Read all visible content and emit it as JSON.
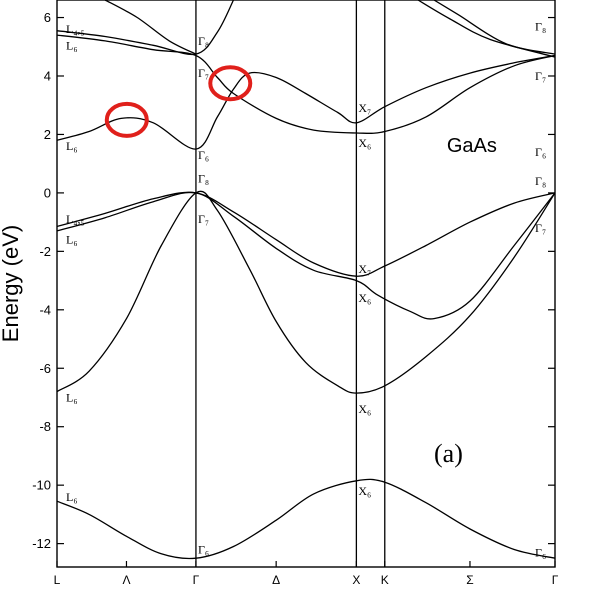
{
  "chart_data": {
    "type": "line",
    "title": "",
    "material_label": "GaAs",
    "panel_label": "(a)",
    "ylabel": "Energy (eV)",
    "xlabel": "",
    "ylim": [
      -12.8,
      6.6
    ],
    "yticks": [
      6,
      4,
      2,
      0,
      -2,
      -4,
      -6,
      -8,
      -10,
      -12
    ],
    "kpoints": [
      {
        "label": "L",
        "x": 0.0
      },
      {
        "label": "Λ",
        "x": 0.433
      },
      {
        "label": "Γ",
        "x": 0.866
      },
      {
        "label": "Δ",
        "x": 1.366
      },
      {
        "label": "X",
        "x": 1.866
      },
      {
        "label": "K",
        "x": 2.043
      },
      {
        "label": "Σ",
        "x": 2.574
      },
      {
        "label": "Γ",
        "x": 3.104
      }
    ],
    "xlim": [
      0,
      3.104
    ],
    "vertical_lines_at": [
      0.866,
      1.866,
      2.043
    ],
    "series": [
      {
        "values": [
          [
            0,
            -10.55
          ],
          [
            0.2,
            -11.0
          ],
          [
            0.433,
            -11.75
          ],
          [
            0.65,
            -12.35
          ],
          [
            0.866,
            -12.5
          ],
          [
            1.1,
            -12.1
          ],
          [
            1.366,
            -11.2
          ],
          [
            1.6,
            -10.3
          ],
          [
            1.866,
            -9.85
          ],
          [
            2.043,
            -9.9
          ],
          [
            2.3,
            -10.6
          ],
          [
            2.574,
            -11.5
          ],
          [
            2.85,
            -12.2
          ],
          [
            3.104,
            -12.5
          ]
        ]
      },
      {
        "values": [
          [
            0,
            -6.8
          ],
          [
            0.2,
            -6.1
          ],
          [
            0.433,
            -4.3
          ],
          [
            0.65,
            -1.8
          ],
          [
            0.866,
            0.0
          ],
          [
            1.0,
            -0.6
          ],
          [
            1.2,
            -2.6
          ],
          [
            1.366,
            -4.4
          ],
          [
            1.55,
            -5.8
          ],
          [
            1.75,
            -6.6
          ],
          [
            1.866,
            -6.85
          ],
          [
            2.043,
            -6.6
          ],
          [
            2.3,
            -5.6
          ],
          [
            2.574,
            -4.2
          ],
          [
            2.85,
            -2.2
          ],
          [
            3.104,
            0.0
          ]
        ]
      },
      {
        "values": [
          [
            0,
            -1.3
          ],
          [
            0.3,
            -0.85
          ],
          [
            0.6,
            -0.3
          ],
          [
            0.866,
            0.0
          ],
          [
            1.1,
            -0.8
          ],
          [
            1.366,
            -1.9
          ],
          [
            1.6,
            -2.65
          ],
          [
            1.866,
            -3.0
          ],
          [
            2.0,
            -3.5
          ],
          [
            2.2,
            -4.05
          ],
          [
            2.35,
            -4.3
          ],
          [
            2.574,
            -3.7
          ],
          [
            2.85,
            -1.8
          ],
          [
            3.104,
            0.0
          ]
        ]
      },
      {
        "values": [
          [
            0,
            -1.15
          ],
          [
            0.3,
            -0.7
          ],
          [
            0.6,
            -0.2
          ],
          [
            0.866,
            0.0
          ],
          [
            1.1,
            -0.65
          ],
          [
            1.366,
            -1.6
          ],
          [
            1.6,
            -2.4
          ],
          [
            1.866,
            -2.85
          ],
          [
            2.043,
            -2.5
          ],
          [
            2.3,
            -1.8
          ],
          [
            2.574,
            -1.0
          ],
          [
            2.85,
            -0.35
          ],
          [
            3.104,
            0.0
          ]
        ]
      },
      {
        "values": [
          [
            0,
            1.8
          ],
          [
            0.2,
            2.1
          ],
          [
            0.4,
            2.55
          ],
          [
            0.6,
            2.4
          ],
          [
            0.866,
            1.5
          ],
          [
            1.0,
            2.6
          ],
          [
            1.1,
            3.55
          ],
          [
            1.2,
            4.1
          ],
          [
            1.366,
            3.95
          ],
          [
            1.55,
            3.4
          ],
          [
            1.75,
            2.75
          ],
          [
            1.866,
            2.4
          ],
          [
            2.043,
            2.95
          ],
          [
            2.3,
            3.6
          ],
          [
            2.574,
            4.1
          ],
          [
            2.85,
            4.45
          ],
          [
            3.104,
            4.7
          ]
        ]
      },
      {
        "values": [
          [
            0,
            5.4
          ],
          [
            0.3,
            5.2
          ],
          [
            0.6,
            4.9
          ],
          [
            0.866,
            4.7
          ],
          [
            1.0,
            3.95
          ],
          [
            1.1,
            3.4
          ],
          [
            1.366,
            2.55
          ],
          [
            1.6,
            2.15
          ],
          [
            1.866,
            2.05
          ],
          [
            2.043,
            2.1
          ],
          [
            2.3,
            2.6
          ],
          [
            2.574,
            3.6
          ],
          [
            2.85,
            4.35
          ],
          [
            3.104,
            4.7
          ]
        ]
      },
      {
        "values": [
          [
            0,
            5.55
          ],
          [
            0.3,
            5.35
          ],
          [
            0.6,
            5.05
          ],
          [
            0.866,
            4.75
          ],
          [
            1.0,
            5.5
          ],
          [
            1.1,
            6.6
          ]
        ]
      },
      {
        "values": [
          [
            0.3,
            6.6
          ],
          [
            0.5,
            6.0
          ],
          [
            0.7,
            5.2
          ],
          [
            0.866,
            4.75
          ]
        ]
      },
      {
        "values": [
          [
            2.35,
            6.6
          ],
          [
            2.5,
            6.1
          ],
          [
            2.8,
            5.1
          ],
          [
            3.104,
            4.75
          ]
        ]
      },
      {
        "values": [
          [
            2.25,
            6.6
          ],
          [
            2.45,
            5.95
          ],
          [
            2.7,
            5.25
          ],
          [
            3.104,
            4.65
          ]
        ]
      }
    ],
    "annotations": [
      {
        "text": "L₄,₅",
        "at": [
          0,
          5.6
        ]
      },
      {
        "text": "L₆",
        "at": [
          0,
          5.05
        ]
      },
      {
        "text": "L₆",
        "at": [
          0,
          1.6
        ]
      },
      {
        "text": "L₄,₅",
        "at": [
          0,
          -0.9
        ]
      },
      {
        "text": "L₆",
        "at": [
          0,
          -1.6
        ]
      },
      {
        "text": "L₆",
        "at": [
          0,
          -7.0
        ]
      },
      {
        "text": "L₆",
        "at": [
          0,
          -10.4
        ]
      },
      {
        "text": "Γ₈",
        "at": [
          0.866,
          5.2
        ]
      },
      {
        "text": "Γ₇",
        "at": [
          0.866,
          4.1
        ]
      },
      {
        "text": "Γ₆",
        "at": [
          0.866,
          1.3
        ]
      },
      {
        "text": "Γ₈",
        "at": [
          0.866,
          0.5
        ]
      },
      {
        "text": "Γ₇",
        "at": [
          0.866,
          -0.9
        ]
      },
      {
        "text": "Γ₆",
        "at": [
          0.866,
          -12.2
        ]
      },
      {
        "text": "X₇",
        "at": [
          1.866,
          2.9
        ]
      },
      {
        "text": "X₆",
        "at": [
          1.866,
          1.7
        ]
      },
      {
        "text": "X₇",
        "at": [
          1.866,
          -2.6
        ]
      },
      {
        "text": "X₆",
        "at": [
          1.866,
          -3.6
        ]
      },
      {
        "text": "X₆",
        "at": [
          1.866,
          -7.4
        ]
      },
      {
        "text": "X₆",
        "at": [
          1.866,
          -10.2
        ]
      },
      {
        "text": "Γ₈",
        "at": [
          3.104,
          5.7
        ]
      },
      {
        "text": "Γ₇",
        "at": [
          3.104,
          4.0
        ]
      },
      {
        "text": "Γ₆",
        "at": [
          3.104,
          1.4
        ]
      },
      {
        "text": "Γ₈",
        "at": [
          3.104,
          0.4
        ]
      },
      {
        "text": "Γ₇",
        "at": [
          3.104,
          -1.2
        ]
      },
      {
        "text": "Γ₆",
        "at": [
          3.104,
          -12.3
        ]
      }
    ],
    "highlights": [
      {
        "shape": "circle",
        "color": "#e0201b",
        "at": [
          0.435,
          2.5
        ]
      },
      {
        "shape": "circle",
        "color": "#e0201b",
        "at": [
          1.08,
          3.75
        ]
      }
    ],
    "line_color": "#000000",
    "grid": false,
    "legend": "none"
  }
}
